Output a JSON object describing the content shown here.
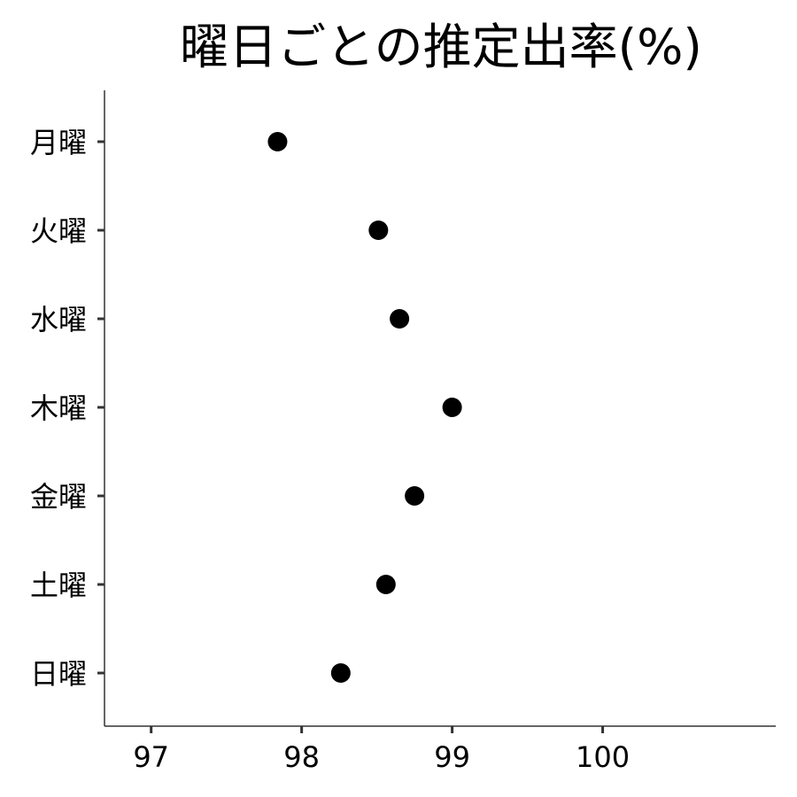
{
  "chart_data": {
    "type": "scatter",
    "title": "曜日ごとの推定出率(%)",
    "xlabel": "",
    "ylabel": "",
    "categories": [
      "月曜",
      "火曜",
      "水曜",
      "木曜",
      "金曜",
      "土曜",
      "日曜"
    ],
    "values": [
      97.84,
      98.51,
      98.65,
      99.0,
      98.75,
      98.56,
      98.26
    ],
    "xlim": [
      96.69,
      101.15
    ],
    "xticks": [
      "97",
      "98",
      "99",
      "100"
    ],
    "grid": false,
    "legend": "none"
  },
  "colors": {
    "point": "#000000",
    "axis": "#333333",
    "text": "#000000"
  }
}
